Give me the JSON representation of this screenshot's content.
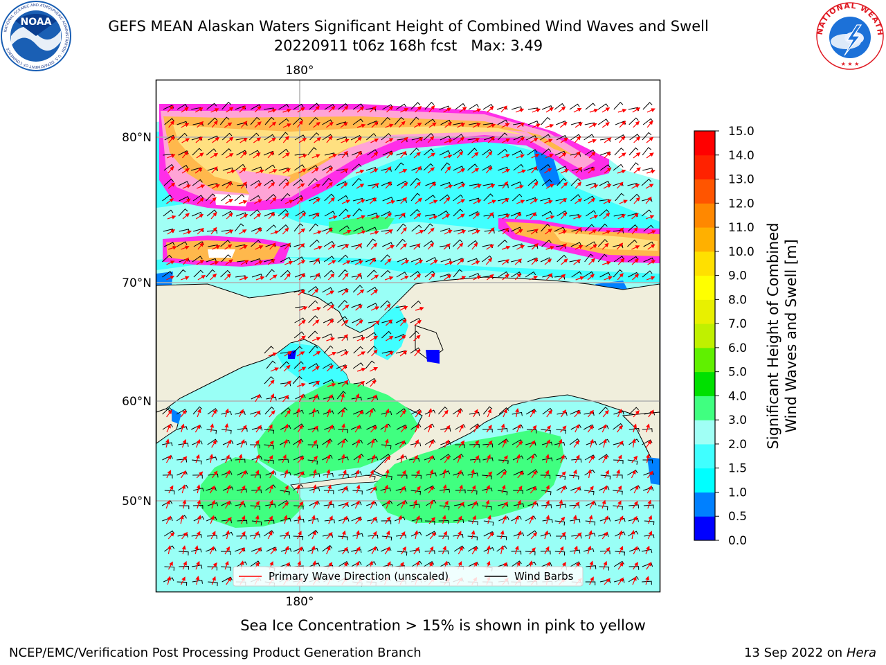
{
  "title": {
    "line1": "GEFS MEAN Alaskan Waters Significant Height of Combined Wind Waves and Swell",
    "line2": "20220911 t06z 168h fcst   Max: 3.49"
  },
  "logos": {
    "left": {
      "name": "NOAA",
      "ring_text": "NATIONAL OCEANIC AND ATMOSPHERIC ADMINISTRATION · U.S. DEPARTMENT OF COMMERCE",
      "color_outer": "#1a5fb4",
      "color_inner": "#0a3d8f"
    },
    "right": {
      "ring_text": "NATIONAL WEATHER SERVICE",
      "color_ring": "#e01b24",
      "color_inner": "#1c71d8"
    }
  },
  "map": {
    "lon_label_top": "180°",
    "lon_label_bottom": "180°",
    "lat_labels": [
      "80°N",
      "70°N",
      "60°N",
      "50°N"
    ],
    "land_color": "#f0eedc",
    "ocean_base_color": "#99fff6",
    "ice_colors": [
      "#ff2ee8",
      "#ffa4d6",
      "#ffb84c",
      "#ffe080"
    ],
    "legend": {
      "wave_label": "Primary Wave Direction (unscaled)",
      "wind_label": "Wind Barbs",
      "wave_color": "#ff0000",
      "wind_color": "#000000"
    }
  },
  "colorbar": {
    "label_line1": "Significant Height of Combined",
    "label_line2": "Wind Waves and Swell [m]",
    "ticks": [
      "0.0",
      "0.5",
      "1.0",
      "1.5",
      "2.0",
      "3.0",
      "4.0",
      "5.0",
      "6.0",
      "7.0",
      "8.0",
      "9.0",
      "10.0",
      "11.0",
      "12.0",
      "13.0",
      "14.0",
      "15.0"
    ],
    "colors": [
      "#0000ff",
      "#0080ff",
      "#00ffff",
      "#40ffff",
      "#a0fff5",
      "#40ff80",
      "#00e000",
      "#60f000",
      "#c0f000",
      "#e8f000",
      "#ffff00",
      "#ffe000",
      "#ffb000",
      "#ff8800",
      "#ff5500",
      "#ff2200",
      "#ff0000"
    ]
  },
  "ice_note": "Sea Ice Concentration > 15% is shown in pink to yellow",
  "footer": {
    "left": "NCEP/EMC/Verification Post Processing Product Generation Branch",
    "right_date": "13 Sep 2022 on",
    "right_host": "Hera"
  }
}
